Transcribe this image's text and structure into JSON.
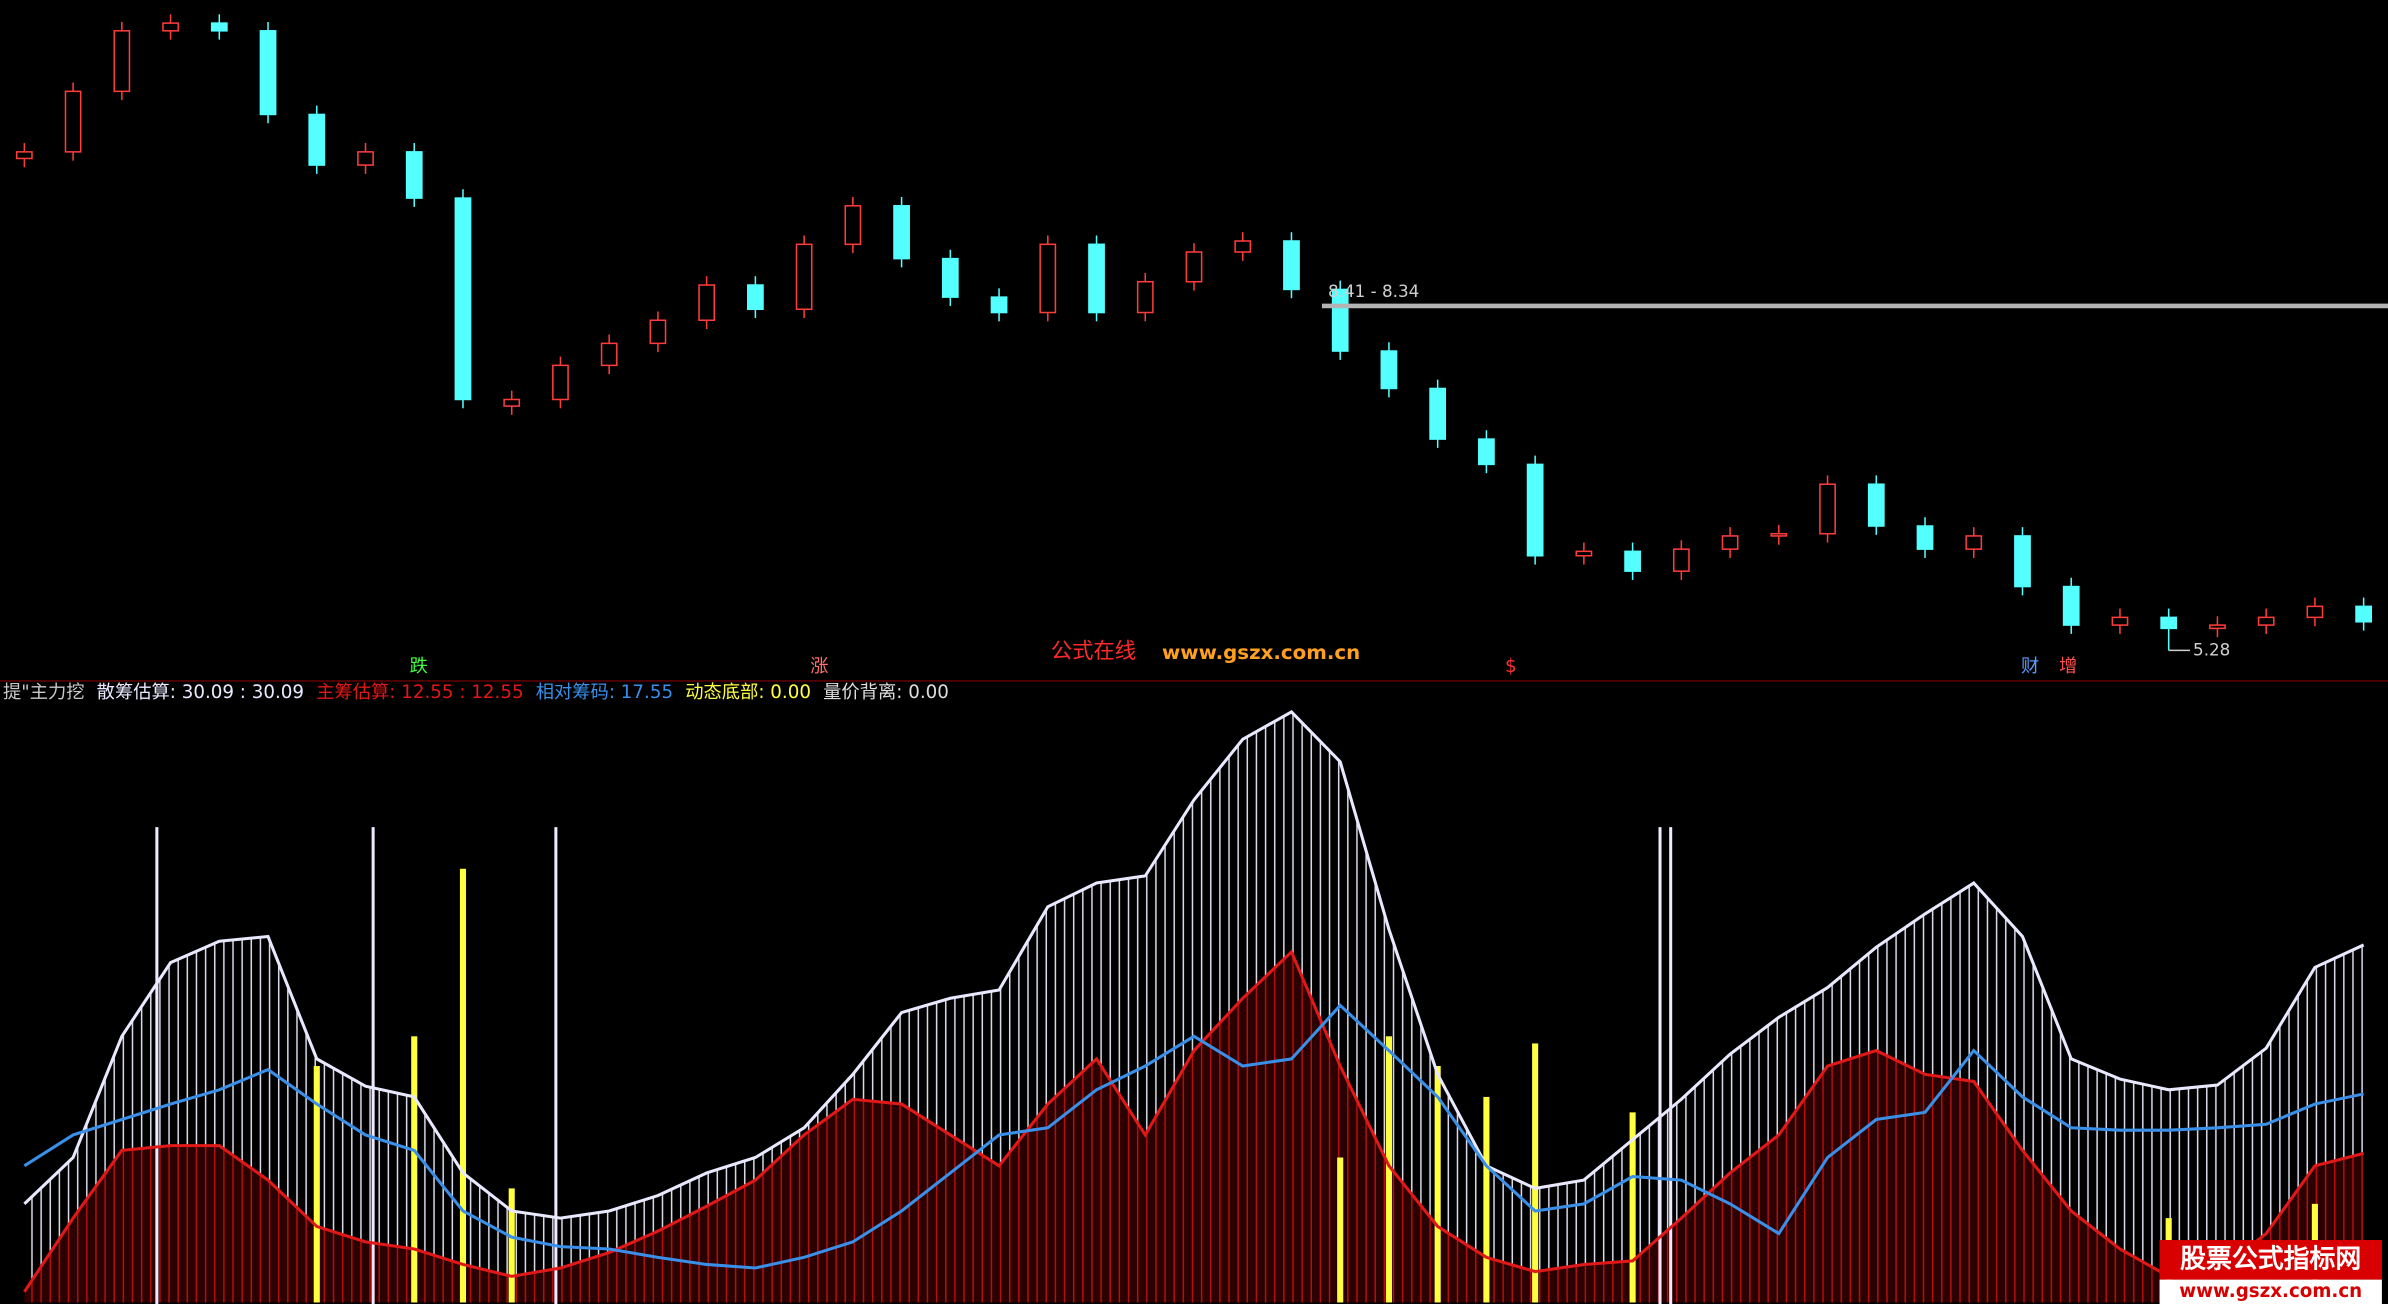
{
  "chart_data": [
    {
      "type": "candlestick",
      "open": [
        9.75,
        9.81,
        10.36,
        10.91,
        10.98,
        10.91,
        10.15,
        9.69,
        9.81,
        9.39,
        7.5,
        7.56,
        7.87,
        8.07,
        8.28,
        8.6,
        8.38,
        8.97,
        9.32,
        8.84,
        8.49,
        8.35,
        8.97,
        8.35,
        8.63,
        8.9,
        9.0,
        8.56,
        8.0,
        7.66,
        7.2,
        6.97,
        6.14,
        6.18,
        6.0,
        6.2,
        6.32,
        6.34,
        6.79,
        6.41,
        6.2,
        6.32,
        5.86,
        5.51,
        5.58,
        5.48,
        5.51,
        5.58,
        5.68
      ],
      "high": [
        9.89,
        10.44,
        10.99,
        11.06,
        11.06,
        10.99,
        10.23,
        9.89,
        9.89,
        9.47,
        7.64,
        7.95,
        8.15,
        8.36,
        8.68,
        8.68,
        9.05,
        9.4,
        9.4,
        8.92,
        8.57,
        9.05,
        9.05,
        8.71,
        8.98,
        9.08,
        9.08,
        8.64,
        8.08,
        7.74,
        7.28,
        7.05,
        6.26,
        6.26,
        6.28,
        6.4,
        6.42,
        6.87,
        6.87,
        6.49,
        6.4,
        6.4,
        5.94,
        5.66,
        5.66,
        5.59,
        5.66,
        5.76,
        5.76
      ],
      "low": [
        9.67,
        9.73,
        10.28,
        10.83,
        10.83,
        10.07,
        9.61,
        9.61,
        9.31,
        7.48,
        7.42,
        7.48,
        7.79,
        7.99,
        8.2,
        8.3,
        8.3,
        8.89,
        8.76,
        8.41,
        8.27,
        8.27,
        8.27,
        8.27,
        8.55,
        8.82,
        8.48,
        7.92,
        7.58,
        7.12,
        6.89,
        6.06,
        6.06,
        5.92,
        5.92,
        6.12,
        6.24,
        6.26,
        6.33,
        6.12,
        6.12,
        5.78,
        5.43,
        5.43,
        5.28,
        5.4,
        5.43,
        5.5,
        5.46
      ],
      "close": [
        9.81,
        10.36,
        10.91,
        10.98,
        10.91,
        10.15,
        9.69,
        9.81,
        9.39,
        7.56,
        7.56,
        7.87,
        8.07,
        8.28,
        8.6,
        8.38,
        8.97,
        9.32,
        8.84,
        8.49,
        8.35,
        8.97,
        8.35,
        8.63,
        8.9,
        9.0,
        8.56,
        8.0,
        7.66,
        7.2,
        6.97,
        6.14,
        6.18,
        6.0,
        6.2,
        6.32,
        6.34,
        6.79,
        6.41,
        6.2,
        6.32,
        5.86,
        5.51,
        5.58,
        5.48,
        5.51,
        5.58,
        5.68,
        5.54
      ],
      "up_color": "#ff3c3c",
      "down_color": "#54ffff",
      "ylim": [
        5.03,
        11.19
      ],
      "annotations": [
        {
          "value": 8.41,
          "label": "8.41 - 8.34"
        },
        {
          "value": 5.28,
          "label": "5.28"
        }
      ],
      "markers": [
        "跌",
        "涨",
        "$",
        "财",
        "增"
      ],
      "watermark": [
        "公式在线",
        "www.gszx.com.cn"
      ]
    },
    {
      "type": "indicator",
      "title": "提\"主力挖",
      "ylim": [
        0,
        50
      ],
      "series": [
        {
          "name": "散筹估算",
          "readout": ": 30.09 : 30.09",
          "color": "#e8e8ff",
          "style": "line-hatch",
          "values": [
            8.3,
            12.2,
            22.4,
            28.6,
            30.4,
            30.8,
            20.5,
            18.2,
            17.3,
            10.9,
            7.7,
            7.1,
            7.7,
            9.0,
            10.9,
            12.2,
            14.7,
            19.2,
            24.4,
            25.6,
            26.3,
            33.3,
            35.3,
            35.9,
            42.3,
            47.4,
            49.7,
            45.5,
            31.4,
            19.2,
            11.5,
            9.6,
            10.3,
            13.7,
            17.1,
            20.9,
            24.0,
            26.5,
            29.9,
            32.7,
            35.3,
            30.8,
            20.5,
            18.8,
            17.9,
            18.3,
            21.4,
            28.2,
            30.09
          ]
        },
        {
          "name": "主筹估算",
          "readout": ": 12.55 : 12.55",
          "color": "#e01818",
          "style": "line-hatch",
          "values": [
            0.9,
            7.1,
            12.8,
            13.2,
            13.2,
            10.3,
            6.4,
            5.1,
            4.5,
            3.2,
            2.2,
            2.9,
            4.2,
            6.0,
            8.1,
            10.3,
            14.1,
            17.1,
            16.7,
            14.1,
            11.5,
            16.7,
            20.5,
            14.1,
            21.2,
            25.6,
            29.5,
            19.9,
            11.5,
            6.4,
            3.8,
            2.6,
            3.2,
            3.5,
            7.1,
            10.9,
            14.1,
            19.9,
            21.2,
            19.2,
            18.6,
            12.8,
            7.7,
            4.5,
            2.2,
            2.6,
            5.8,
            11.5,
            12.55
          ]
        },
        {
          "name": "相对筹码",
          "readout": ": 17.55",
          "color": "#3a8fe8",
          "style": "line",
          "values": [
            11.5,
            14.1,
            15.4,
            16.7,
            17.9,
            19.6,
            16.7,
            14.1,
            12.8,
            7.7,
            5.5,
            4.7,
            4.5,
            3.8,
            3.2,
            2.9,
            3.8,
            5.1,
            7.7,
            10.9,
            14.1,
            14.7,
            17.9,
            19.9,
            22.4,
            19.9,
            20.5,
            25.0,
            21.2,
            17.3,
            11.5,
            7.7,
            8.3,
            10.6,
            10.3,
            8.3,
            5.8,
            12.2,
            15.4,
            16.0,
            21.2,
            17.3,
            14.7,
            14.5,
            14.5,
            14.7,
            15.0,
            16.7,
            17.55
          ]
        },
        {
          "name": "动态底部",
          "readout": ": 0.00",
          "color": "#ffff40",
          "style": "bar",
          "values": [
            0,
            0,
            0,
            0,
            0,
            0,
            19.9,
            0,
            22.4,
            36.5,
            9.6,
            0,
            0,
            0,
            0,
            0,
            0,
            0,
            0,
            0,
            0,
            0,
            0,
            0,
            0,
            0,
            0,
            12.2,
            22.4,
            19.9,
            17.3,
            21.8,
            0,
            16.0,
            0,
            0,
            0,
            0,
            0,
            0,
            0,
            0,
            0,
            0,
            7.1,
            0,
            0,
            8.3,
            0
          ]
        },
        {
          "name": "量价背离",
          "readout": ": 0.00",
          "color": "#dddddd",
          "style": "none",
          "values": []
        }
      ],
      "logo": [
        "股票公式指标网",
        "www.gszx.com.cn"
      ]
    }
  ]
}
